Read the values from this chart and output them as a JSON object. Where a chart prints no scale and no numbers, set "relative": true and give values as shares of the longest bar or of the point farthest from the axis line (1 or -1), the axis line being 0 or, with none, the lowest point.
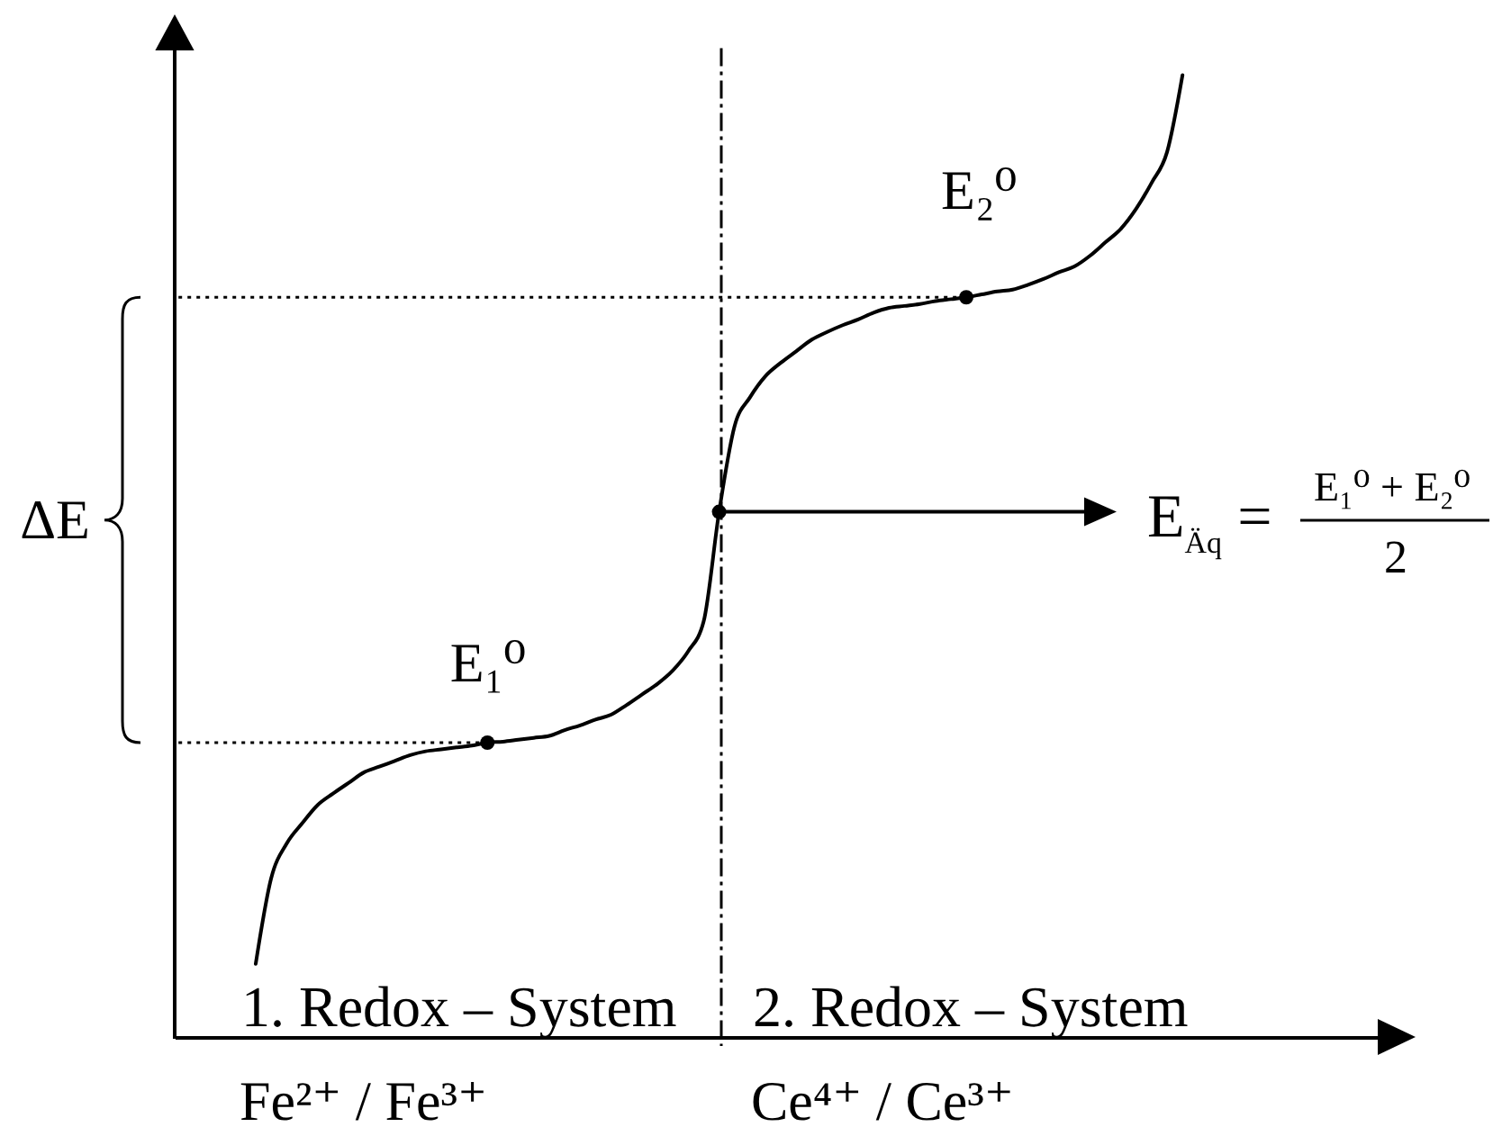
{
  "chart_data": {
    "type": "line",
    "relative": true,
    "categories": [
      null,
      null,
      null,
      null,
      null,
      null,
      null,
      null,
      null,
      null,
      null,
      null,
      null,
      null,
      null,
      null,
      null,
      null,
      null,
      null,
      null,
      null,
      null,
      null,
      null,
      null,
      null,
      null,
      null,
      null,
      null,
      null,
      null,
      null,
      null,
      null,
      null,
      null,
      null,
      null,
      null,
      null,
      null,
      null,
      null,
      null,
      null,
      null,
      null,
      null,
      null,
      null,
      null,
      null,
      null,
      null,
      null,
      null,
      null,
      null,
      null,
      null,
      null,
      null,
      null,
      null,
      null,
      null,
      null,
      null,
      null,
      null,
      null,
      null,
      null,
      null,
      null
    ],
    "series": [
      {
        "color": "#000000",
        "values": [
          null,
          null,
          null,
          null,
          null,
          0.076,
          0.165,
          0.201,
          0.222,
          0.241,
          0.253,
          0.264,
          0.275,
          0.281,
          0.287,
          0.293,
          0.297,
          0.299,
          0.301,
          0.303,
          0.306,
          0.307,
          0.309,
          0.311,
          0.313,
          0.319,
          0.324,
          0.33,
          0.335,
          0.345,
          0.356,
          0.367,
          0.381,
          0.401,
          0.432,
          0.546,
          0.635,
          0.665,
          0.687,
          0.701,
          0.713,
          0.725,
          0.733,
          0.74,
          0.746,
          0.753,
          0.758,
          0.76,
          0.762,
          0.765,
          0.767,
          0.769,
          0.772,
          0.775,
          0.777,
          0.782,
          0.788,
          0.795,
          0.801,
          0.812,
          0.826,
          0.84,
          0.861,
          0.888,
          0.92,
          1,
          null,
          null,
          null,
          null,
          null,
          null,
          null,
          null,
          null,
          null,
          null
        ]
      },
      {
        "color": "#000000",
        "line_style": "dotted",
        "values": [
          0.306,
          0.306,
          0.306,
          0.306,
          0.306,
          0.306,
          0.306,
          0.306,
          0.306,
          0.306,
          0.306,
          0.306,
          0.306,
          0.306,
          0.306,
          0.306,
          0.306,
          0.306,
          0.306,
          0.306,
          0.306,
          null,
          null,
          null,
          null,
          null,
          null,
          null,
          null,
          null,
          null,
          null,
          null,
          null,
          null,
          null,
          null,
          null,
          null,
          null,
          null,
          null,
          null,
          null,
          null,
          null,
          null,
          null,
          null,
          null,
          null,
          null,
          null,
          null,
          null,
          null,
          null,
          null,
          null,
          null,
          null,
          null,
          null,
          null,
          null,
          null,
          null,
          null,
          null,
          null,
          null,
          null,
          null,
          null,
          null,
          null,
          null
        ]
      },
      {
        "color": "#000000",
        "line_style": "dotted",
        "values": [
          0.769,
          0.769,
          0.769,
          0.769,
          0.769,
          0.769,
          0.769,
          0.769,
          0.769,
          0.769,
          0.769,
          0.769,
          0.769,
          0.769,
          0.769,
          0.769,
          0.769,
          0.769,
          0.769,
          0.769,
          0.769,
          0.769,
          0.769,
          0.769,
          0.769,
          0.769,
          0.769,
          0.769,
          0.769,
          0.769,
          0.769,
          0.769,
          0.769,
          0.769,
          0.769,
          0.769,
          0.769,
          0.769,
          0.769,
          0.769,
          0.769,
          0.769,
          0.769,
          0.769,
          0.769,
          0.769,
          0.769,
          0.769,
          0.769,
          0.769,
          0.769,
          0.769,
          null,
          null,
          null,
          null,
          null,
          null,
          null,
          null,
          null,
          null,
          null,
          null,
          null,
          null,
          null,
          null,
          null,
          null,
          null,
          null,
          null,
          null,
          null,
          null,
          null
        ]
      },
      {
        "color": "#000000",
        "marker": "circle",
        "values": [
          null,
          null,
          null,
          null,
          null,
          null,
          null,
          null,
          null,
          null,
          null,
          null,
          null,
          null,
          null,
          null,
          null,
          null,
          null,
          null,
          0.306,
          null,
          null,
          null,
          null,
          null,
          null,
          null,
          null,
          null,
          null,
          null,
          null,
          null,
          null,
          0.546,
          null,
          null,
          null,
          null,
          null,
          null,
          null,
          null,
          null,
          null,
          null,
          null,
          null,
          null,
          null,
          0.769,
          null,
          null,
          null,
          null,
          null,
          null,
          null,
          null,
          null,
          null,
          null,
          null,
          null,
          null,
          null,
          null,
          null,
          null,
          null,
          null,
          null,
          null,
          null,
          null,
          null
        ]
      }
    ],
    "annotations": [
      "E₁⁰",
      "E₂⁰",
      "E$_{Äq}$ =",
      "E₁⁰ + E₂⁰",
      "2",
      "ΔE",
      "1. Redox – System",
      "2. Redox – System",
      "Fe²⁺ / Fe³⁺",
      "Ce⁴⁺ / Ce³⁺"
    ]
  }
}
